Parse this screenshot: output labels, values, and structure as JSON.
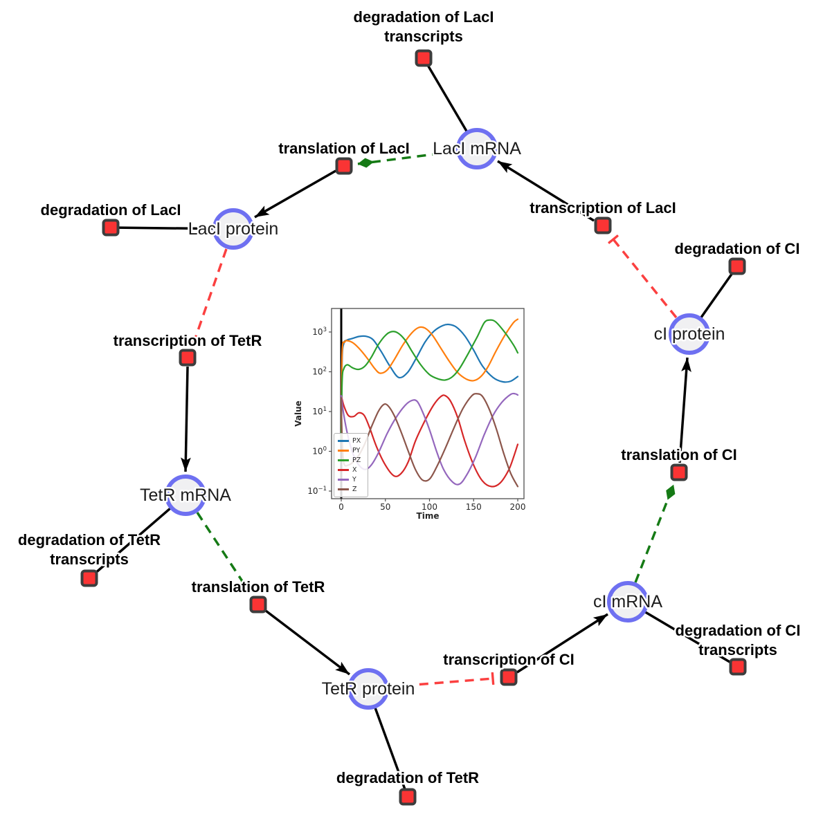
{
  "figure": {
    "background": "#ffffff"
  },
  "colors": {
    "species_fill": "#f0f0f2",
    "species_stroke": "#6e70f1",
    "reaction_fill": "#fa3434",
    "reaction_stroke": "#3d3d3d",
    "edge": "#000000",
    "modifier_edge": "#157a15",
    "inhibition_edge": "#fb4040"
  },
  "network": {
    "species": [
      {
        "id": "laci-mrna",
        "label": "LacI mRNA"
      },
      {
        "id": "laci-protein",
        "label": "LacI protein"
      },
      {
        "id": "tetr-mrna",
        "label": "TetR mRNA"
      },
      {
        "id": "tetr-protein",
        "label": "TetR protein"
      },
      {
        "id": "ci-mrna",
        "label": "cI mRNA"
      },
      {
        "id": "ci-protein",
        "label": "cI protein"
      }
    ],
    "reactions": [
      {
        "id": "degradation-of-laci-transcripts",
        "lines": [
          "degradation of LacI",
          "transcripts"
        ]
      },
      {
        "id": "translation-of-laci",
        "lines": [
          "translation of LacI"
        ]
      },
      {
        "id": "transcription-of-laci",
        "lines": [
          "transcription of LacI"
        ]
      },
      {
        "id": "degradation-of-laci",
        "lines": [
          "degradation of LacI"
        ]
      },
      {
        "id": "degradation-of-ci",
        "lines": [
          "degradation of CI"
        ]
      },
      {
        "id": "transcription-of-tetr",
        "lines": [
          "transcription of TetR"
        ]
      },
      {
        "id": "translation-of-ci",
        "lines": [
          "translation of CI"
        ]
      },
      {
        "id": "degradation-of-tetr-transcripts",
        "lines": [
          "degradation of TetR",
          "transcripts"
        ]
      },
      {
        "id": "translation-of-tetr",
        "lines": [
          "translation of TetR"
        ]
      },
      {
        "id": "degradation-of-ci-transcripts",
        "lines": [
          "degradation of CI",
          "transcripts"
        ]
      },
      {
        "id": "transcription-of-ci",
        "lines": [
          "transcription of CI"
        ]
      },
      {
        "id": "degradation-of-tetr",
        "lines": [
          "degradation of TetR"
        ]
      }
    ]
  },
  "chart_data": {
    "type": "line",
    "title": "",
    "xlabel": "Time",
    "ylabel": "Value",
    "yscale": "log",
    "grid": false,
    "legend_position": "lower-left",
    "xlim": [
      -11,
      207
    ],
    "ylim": [
      0.065,
      3900
    ],
    "xticks": [
      0,
      50,
      100,
      150,
      200
    ],
    "ytick_exponents": [
      -1,
      0,
      1,
      2,
      3
    ],
    "axvline_x": 0,
    "series": [
      {
        "name": "PX",
        "color": "#1f77b4",
        "points": [
          [
            0,
            2
          ],
          [
            1,
            200
          ],
          [
            3,
            520
          ],
          [
            6,
            620
          ],
          [
            12,
            680
          ],
          [
            20,
            770
          ],
          [
            28,
            780
          ],
          [
            36,
            640
          ],
          [
            45,
            330
          ],
          [
            55,
            140
          ],
          [
            65,
            72
          ],
          [
            75,
            95
          ],
          [
            85,
            220
          ],
          [
            95,
            560
          ],
          [
            105,
            1050
          ],
          [
            115,
            1450
          ],
          [
            122,
            1550
          ],
          [
            130,
            1350
          ],
          [
            140,
            800
          ],
          [
            150,
            350
          ],
          [
            160,
            140
          ],
          [
            172,
            72
          ],
          [
            183,
            56
          ],
          [
            192,
            58
          ],
          [
            200,
            76
          ]
        ]
      },
      {
        "name": "PY",
        "color": "#ff7f0e",
        "points": [
          [
            0,
            2
          ],
          [
            1,
            300
          ],
          [
            4,
            560
          ],
          [
            8,
            600
          ],
          [
            14,
            520
          ],
          [
            22,
            350
          ],
          [
            30,
            210
          ],
          [
            38,
            120
          ],
          [
            44,
            92
          ],
          [
            52,
            110
          ],
          [
            60,
            200
          ],
          [
            70,
            480
          ],
          [
            80,
            950
          ],
          [
            88,
            1300
          ],
          [
            95,
            1250
          ],
          [
            103,
            850
          ],
          [
            112,
            420
          ],
          [
            122,
            190
          ],
          [
            132,
            95
          ],
          [
            142,
            65
          ],
          [
            150,
            60
          ],
          [
            158,
            75
          ],
          [
            166,
            130
          ],
          [
            175,
            320
          ],
          [
            185,
            800
          ],
          [
            195,
            1700
          ],
          [
            200,
            2100
          ]
        ]
      },
      {
        "name": "PZ",
        "color": "#2ca02c",
        "points": [
          [
            0,
            2
          ],
          [
            1,
            60
          ],
          [
            3,
            120
          ],
          [
            7,
            150
          ],
          [
            13,
            125
          ],
          [
            20,
            115
          ],
          [
            27,
            140
          ],
          [
            34,
            230
          ],
          [
            42,
            480
          ],
          [
            50,
            820
          ],
          [
            57,
            1020
          ],
          [
            64,
            950
          ],
          [
            72,
            640
          ],
          [
            80,
            330
          ],
          [
            90,
            150
          ],
          [
            100,
            85
          ],
          [
            110,
            66
          ],
          [
            118,
            62
          ],
          [
            126,
            75
          ],
          [
            134,
            120
          ],
          [
            144,
            290
          ],
          [
            154,
            750
          ],
          [
            162,
            1700
          ],
          [
            168,
            2000
          ],
          [
            175,
            1800
          ],
          [
            185,
            1000
          ],
          [
            195,
            480
          ],
          [
            200,
            300
          ]
        ]
      },
      {
        "name": "X",
        "color": "#d62728",
        "points": [
          [
            0,
            25
          ],
          [
            3,
            14
          ],
          [
            8,
            8
          ],
          [
            14,
            7.5
          ],
          [
            20,
            9.3
          ],
          [
            26,
            8
          ],
          [
            32,
            4
          ],
          [
            40,
            1.3
          ],
          [
            50,
            0.45
          ],
          [
            60,
            0.24
          ],
          [
            68,
            0.28
          ],
          [
            76,
            0.55
          ],
          [
            84,
            1.8
          ],
          [
            95,
            6
          ],
          [
            105,
            15
          ],
          [
            113,
            24
          ],
          [
            118,
            25
          ],
          [
            124,
            18
          ],
          [
            132,
            7
          ],
          [
            140,
            1.8
          ],
          [
            150,
            0.45
          ],
          [
            160,
            0.18
          ],
          [
            170,
            0.13
          ],
          [
            180,
            0.16
          ],
          [
            190,
            0.35
          ],
          [
            196,
            0.8
          ],
          [
            200,
            1.5
          ]
        ]
      },
      {
        "name": "Y",
        "color": "#9467bd",
        "points": [
          [
            0,
            25
          ],
          [
            3,
            8
          ],
          [
            8,
            2.2
          ],
          [
            14,
            0.8
          ],
          [
            20,
            0.45
          ],
          [
            27,
            0.35
          ],
          [
            34,
            0.45
          ],
          [
            42,
            0.9
          ],
          [
            52,
            2.8
          ],
          [
            62,
            7
          ],
          [
            72,
            14
          ],
          [
            80,
            19
          ],
          [
            86,
            18
          ],
          [
            92,
            10
          ],
          [
            100,
            3.5
          ],
          [
            108,
            1
          ],
          [
            116,
            0.35
          ],
          [
            126,
            0.17
          ],
          [
            134,
            0.15
          ],
          [
            142,
            0.25
          ],
          [
            152,
            0.7
          ],
          [
            162,
            2.6
          ],
          [
            172,
            8
          ],
          [
            182,
            17
          ],
          [
            192,
            27
          ],
          [
            197,
            28
          ],
          [
            200,
            26
          ]
        ]
      },
      {
        "name": "Z",
        "color": "#8c564b",
        "points": [
          [
            0,
            22
          ],
          [
            1,
            2
          ],
          [
            3,
            0.5
          ],
          [
            8,
            0.45
          ],
          [
            14,
            0.55
          ],
          [
            20,
            0.8
          ],
          [
            27,
            1.6
          ],
          [
            34,
            4
          ],
          [
            42,
            10
          ],
          [
            48,
            15
          ],
          [
            53,
            14
          ],
          [
            60,
            8
          ],
          [
            68,
            3
          ],
          [
            76,
            1
          ],
          [
            84,
            0.35
          ],
          [
            92,
            0.19
          ],
          [
            100,
            0.2
          ],
          [
            108,
            0.4
          ],
          [
            118,
            1.2
          ],
          [
            128,
            4
          ],
          [
            138,
            12
          ],
          [
            148,
            25
          ],
          [
            154,
            28
          ],
          [
            160,
            24
          ],
          [
            168,
            11
          ],
          [
            176,
            3.5
          ],
          [
            184,
            0.9
          ],
          [
            192,
            0.28
          ],
          [
            200,
            0.13
          ]
        ]
      }
    ]
  }
}
